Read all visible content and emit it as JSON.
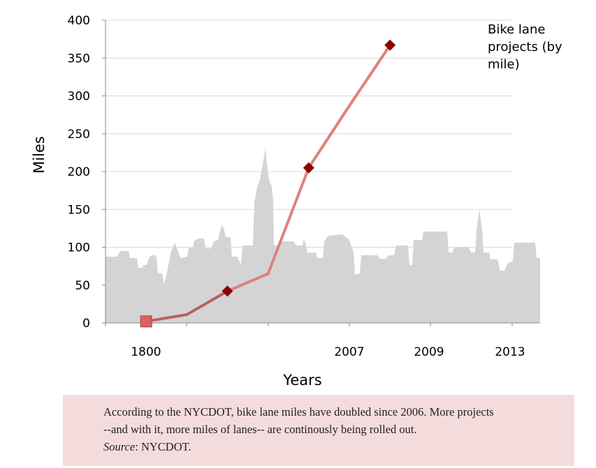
{
  "chart_data": {
    "type": "line",
    "x": [
      "1800",
      "",
      "2007",
      "2009",
      "",
      "2013",
      ""
    ],
    "series": [
      {
        "name": "Bike lane projects (by mile)",
        "values": [
          2,
          11,
          42,
          65,
          205,
          287,
          367
        ]
      }
    ],
    "ylabel": "Miles",
    "xlabel": "Years",
    "yticks": [
      0,
      50,
      100,
      150,
      200,
      250,
      300,
      350,
      400
    ],
    "ylim": [
      0,
      400
    ],
    "grid": true,
    "series_label_lines": [
      "Bike lane",
      "projects (by",
      "mile)"
    ],
    "line_color": "#e08080",
    "marker_color": "#8b0000",
    "first_marker_color": "#e06060"
  },
  "caption": {
    "lines": [
      "According to the NYCDOT, bike lane miles have doubled since 2006. More projects",
      "--and with it, more miles of lanes-- are continously being rolled out."
    ],
    "source_label": "Source",
    "source_sep": ":",
    "source_value": " NYCDOT."
  },
  "colors": {
    "skyline": "#d4d4d4",
    "grid": "#d9d9d9",
    "caption_bg": "#f5dcdc"
  }
}
